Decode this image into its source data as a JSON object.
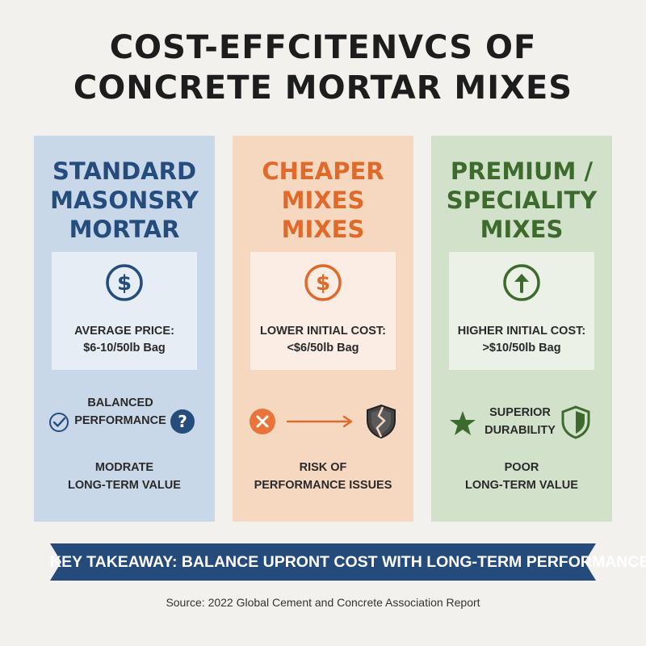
{
  "title": {
    "line1": "COST-EFFCITENVCS OF",
    "line2": "CONCRETE MORTAR MIXES"
  },
  "columns": [
    {
      "heading": [
        "STANDARD",
        "MASONSRY",
        "MORTAR"
      ],
      "price_icon": "dollar-circle-icon",
      "price_lines": [
        "AVERAGE PRICE:",
        "$6-10/50lb Bag"
      ],
      "mid_lines": [
        "BALANCED",
        "PERFORMANCE"
      ],
      "mid_icons": [
        "check-circle-icon",
        "question-circle-icon"
      ],
      "bottom_lines": [
        "MODRATE",
        "LONG-TERM VALUE"
      ],
      "color": "#244c7d"
    },
    {
      "heading": [
        "CHEAPER",
        "MIXES",
        "MIXES"
      ],
      "price_icon": "dollar-circle-icon",
      "price_lines": [
        "LOWER INITIAL COST:",
        "<$6/50lb Bag"
      ],
      "mid_icons": [
        "x-circle-icon",
        "arrow-right-icon",
        "broken-shield-icon"
      ],
      "bottom_lines": [
        "RISK OF",
        "PERFORMANCE ISSUES"
      ],
      "color": "#e06a2a"
    },
    {
      "heading": [
        "PREMIUM /",
        "SPECIALITY",
        "MIXES"
      ],
      "price_icon": "up-arrow-circle-icon",
      "price_lines": [
        "HIGHER INITIAL COST:",
        ">$10/50lb Bag"
      ],
      "mid_lines": [
        "SUPERIOR",
        "DURABILITY"
      ],
      "mid_icons": [
        "star-icon",
        "shield-icon"
      ],
      "bottom_lines": [
        "POOR",
        "LONG-TERM VALUE"
      ],
      "color": "#3d6b2d"
    }
  ],
  "banner": {
    "text": "KEY TAKEAWAY: BALANCE UPRONT COST WITH LONG-TERM PERFORMANCE",
    "color": "#254a7c"
  },
  "source": "Source: 2022 Global Cement and Concrete Association Report"
}
